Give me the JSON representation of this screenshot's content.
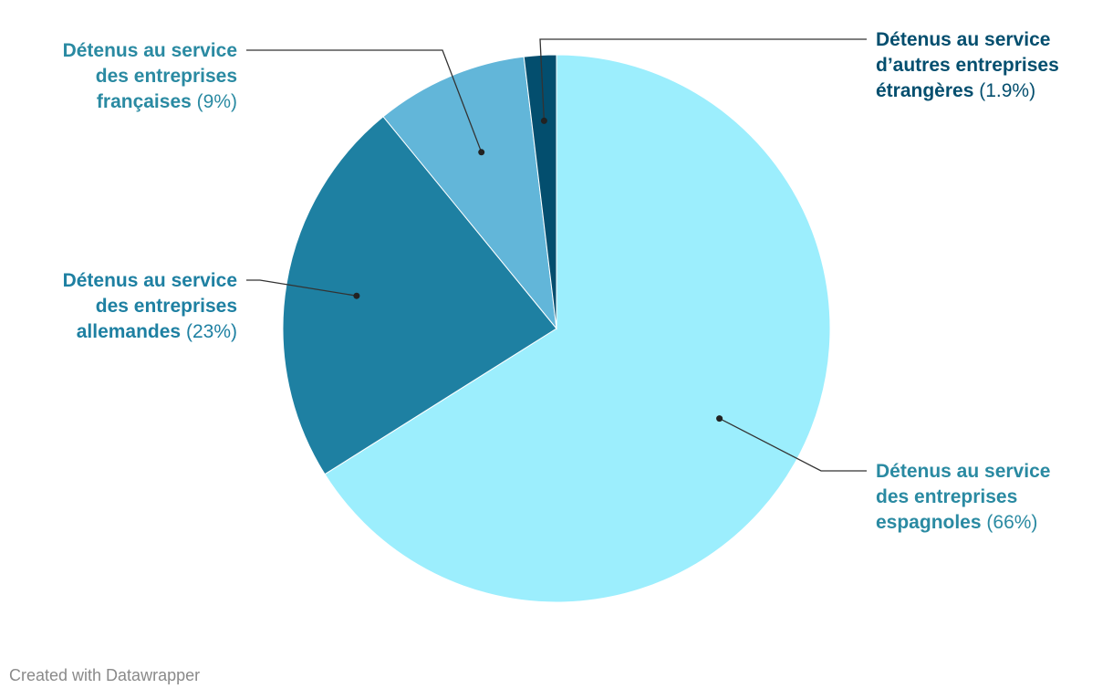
{
  "chart_data": {
    "type": "pie",
    "slices": [
      {
        "line1": "Détenus au service",
        "line2": "des entreprises",
        "line3": "espagnoles",
        "pct": "(66%)",
        "value": 66,
        "color": "#9ceefd",
        "labelColor": "#2a8aa2"
      },
      {
        "line1": "Détenus au service",
        "line2": "des entreprises",
        "line3": "allemandes",
        "pct": "(23%)",
        "value": 23,
        "color": "#1e80a2",
        "labelColor": "#1e80a2"
      },
      {
        "line1": "Détenus au service",
        "line2": "des entreprises",
        "line3": "françaises",
        "pct": "(9%)",
        "value": 9,
        "color": "#62b6d9",
        "labelColor": "#2a8aa2"
      },
      {
        "line1": "Détenus au service",
        "line2": "d’autres entreprises",
        "line3": "étrangères",
        "pct": "(1.9%)",
        "value": 1.9,
        "color": "#034e6e",
        "labelColor": "#034e6e"
      }
    ]
  },
  "footer": {
    "credit": "Created with Datawrapper"
  }
}
